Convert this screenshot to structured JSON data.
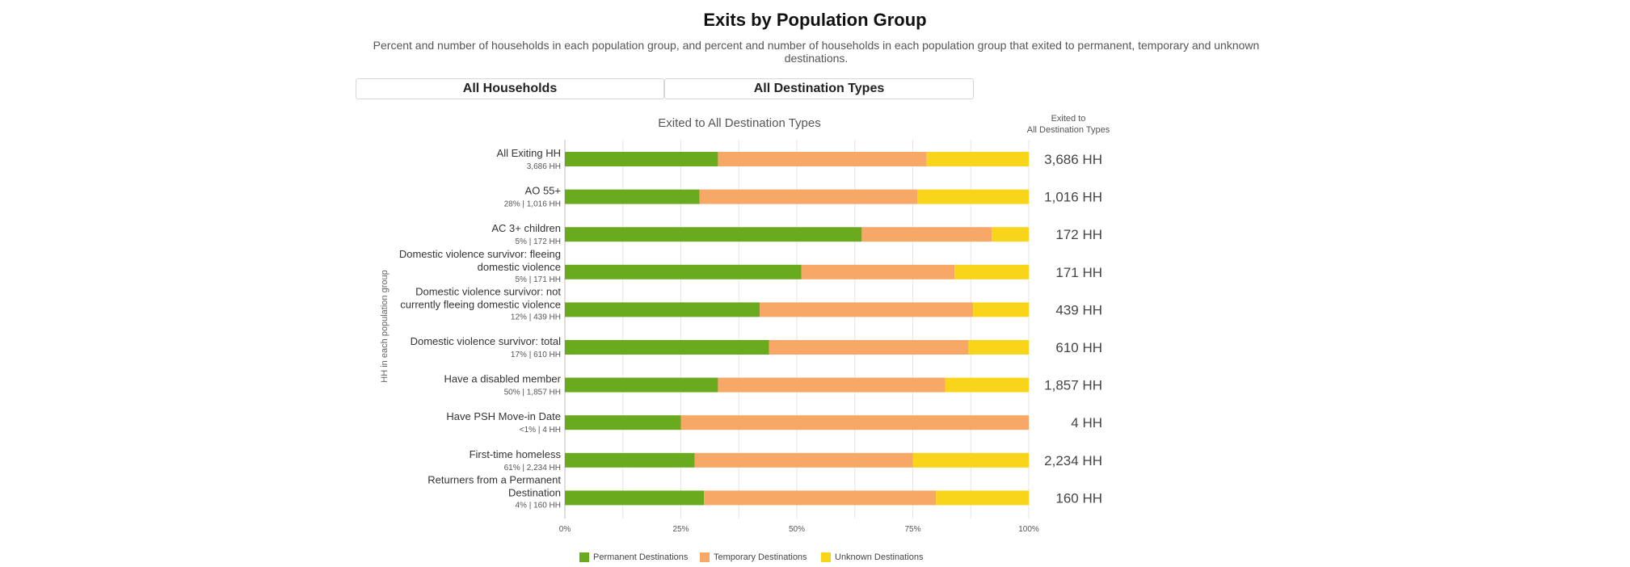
{
  "header": {
    "title": "Exits by Population Group",
    "subtitle": "Percent and number of households in each population group, and percent and number of households in each population group that exited to permanent, temporary and unknown destinations."
  },
  "filters": {
    "household_select": "All Households",
    "destination_select": "All Destination Types"
  },
  "colors": {
    "permanent": "#6aaa1e",
    "temporary": "#f7a866",
    "unknown": "#f8d41a"
  },
  "chart_data": {
    "type": "bar",
    "orientation": "horizontal",
    "stacked": true,
    "title": "Exited to All Destination Types",
    "ylabel": "HH in each population group",
    "xlim": [
      0,
      100
    ],
    "x_ticks": [
      "0%",
      "25%",
      "50%",
      "75%",
      "100%"
    ],
    "grid": true,
    "legend_position": "bottom",
    "side_column_header": "Exited to\nAll Destination Types",
    "categories": [
      "All Exiting HH",
      "AO 55+",
      "AC 3+ children",
      "Domestic violence survivor: fleeing domestic violence",
      "Domestic violence survivor: not currently fleeing domestic violence",
      "Domestic violence survivor: total",
      "Have a disabled member",
      "Have PSH Move-in Date",
      "First-time homeless",
      "Returners from a Permanent Destination"
    ],
    "category_label_lines": [
      [
        "All Exiting HH"
      ],
      [
        "AO 55+"
      ],
      [
        "AC 3+ children"
      ],
      [
        "Domestic violence survivor: fleeing",
        "domestic violence"
      ],
      [
        "Domestic violence survivor: not",
        "currently fleeing domestic violence"
      ],
      [
        "Domestic violence survivor: total"
      ],
      [
        "Have a disabled member"
      ],
      [
        "Have PSH Move-in Date"
      ],
      [
        "First-time homeless"
      ],
      [
        "Returners from a Permanent",
        "Destination"
      ]
    ],
    "category_sublabels": [
      "3,686 HH",
      "28% | 1,016 HH",
      "5% | 172 HH",
      "5% | 171 HH",
      "12% | 439 HH",
      "17% | 610 HH",
      "50% | 1,857 HH",
      "<1% | 4 HH",
      "61% | 2,234 HH",
      "4% | 160 HH"
    ],
    "totals": [
      "3,686 HH",
      "1,016 HH",
      "172 HH",
      "171 HH",
      "439 HH",
      "610 HH",
      "1,857 HH",
      "4 HH",
      "2,234 HH",
      "160 HH"
    ],
    "series": [
      {
        "name": "Permanent Destinations",
        "values": [
          33,
          29,
          64,
          51,
          42,
          44,
          33,
          25,
          28,
          30
        ]
      },
      {
        "name": "Temporary Destinations",
        "values": [
          45,
          47,
          28,
          33,
          46,
          43,
          49,
          75,
          47,
          50
        ]
      },
      {
        "name": "Unknown Destinations",
        "values": [
          22,
          24,
          8,
          16,
          12,
          13,
          18,
          0,
          25,
          20
        ]
      }
    ]
  }
}
